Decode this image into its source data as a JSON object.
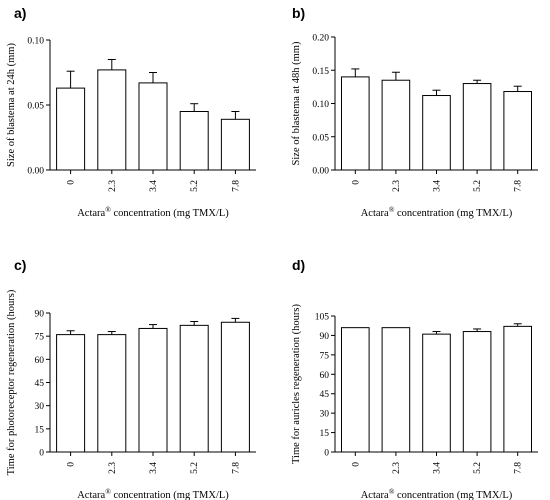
{
  "chart_data": [
    {
      "type": "bar",
      "panel_label": "a)",
      "categories": [
        "0",
        "2.3",
        "3.4",
        "5.2",
        "7.8"
      ],
      "values": [
        0.063,
        0.077,
        0.067,
        0.045,
        0.039
      ],
      "errors": [
        0.013,
        0.008,
        0.008,
        0.006,
        0.006
      ],
      "ylabel": "Size of  blastema at 24h (mm)",
      "xlabel": "Actara® concentration (mg TMX/L)",
      "ylim": [
        0,
        0.1
      ],
      "yticks": [
        "0.00",
        "0.05",
        "0.10"
      ],
      "ytick_values": [
        0,
        0.05,
        0.1
      ],
      "grid": false
    },
    {
      "type": "bar",
      "panel_label": "b)",
      "categories": [
        "0",
        "2.3",
        "3.4",
        "5.2",
        "7.8"
      ],
      "values": [
        0.14,
        0.135,
        0.112,
        0.13,
        0.118
      ],
      "errors": [
        0.012,
        0.012,
        0.008,
        0.005,
        0.008
      ],
      "ylabel": "Size of blastema at 48h (mm)",
      "xlabel": "Actara® concentration (mg TMX/L)",
      "ylim": [
        0,
        0.2
      ],
      "yticks": [
        "0.00",
        "0.05",
        "0.10",
        "0.15",
        "0.20"
      ],
      "ytick_values": [
        0,
        0.05,
        0.1,
        0.15,
        0.2
      ],
      "grid": false
    },
    {
      "type": "bar",
      "panel_label": "c)",
      "categories": [
        "0",
        "2.3",
        "3.4",
        "5.2",
        "7.8"
      ],
      "values": [
        76,
        76,
        80,
        82,
        84
      ],
      "errors": [
        2.5,
        2,
        2.5,
        2.5,
        2.5
      ],
      "ylabel": "Time for photoreceptor regeneration (hours)",
      "xlabel": "Actara® concentration (mg TMX/L)",
      "ylim": [
        0,
        90
      ],
      "yticks": [
        "0",
        "15",
        "30",
        "45",
        "60",
        "75",
        "90"
      ],
      "ytick_values": [
        0,
        15,
        30,
        45,
        60,
        75,
        90
      ],
      "grid": false
    },
    {
      "type": "bar",
      "panel_label": "d)",
      "categories": [
        "0",
        "2.3",
        "3.4",
        "5.2",
        "7.8"
      ],
      "values": [
        96,
        96,
        91,
        93,
        97
      ],
      "errors": [
        0,
        0,
        2,
        2,
        2
      ],
      "ylabel": "Time for auricles regeneration (hours)",
      "xlabel": "Actara® concentration (mg TMX/L)",
      "ylim": [
        0,
        105
      ],
      "yticks": [
        "0",
        "15",
        "30",
        "45",
        "60",
        "75",
        "90",
        "105"
      ],
      "ytick_values": [
        0,
        15,
        30,
        45,
        60,
        75,
        90,
        105
      ],
      "grid": false
    }
  ]
}
